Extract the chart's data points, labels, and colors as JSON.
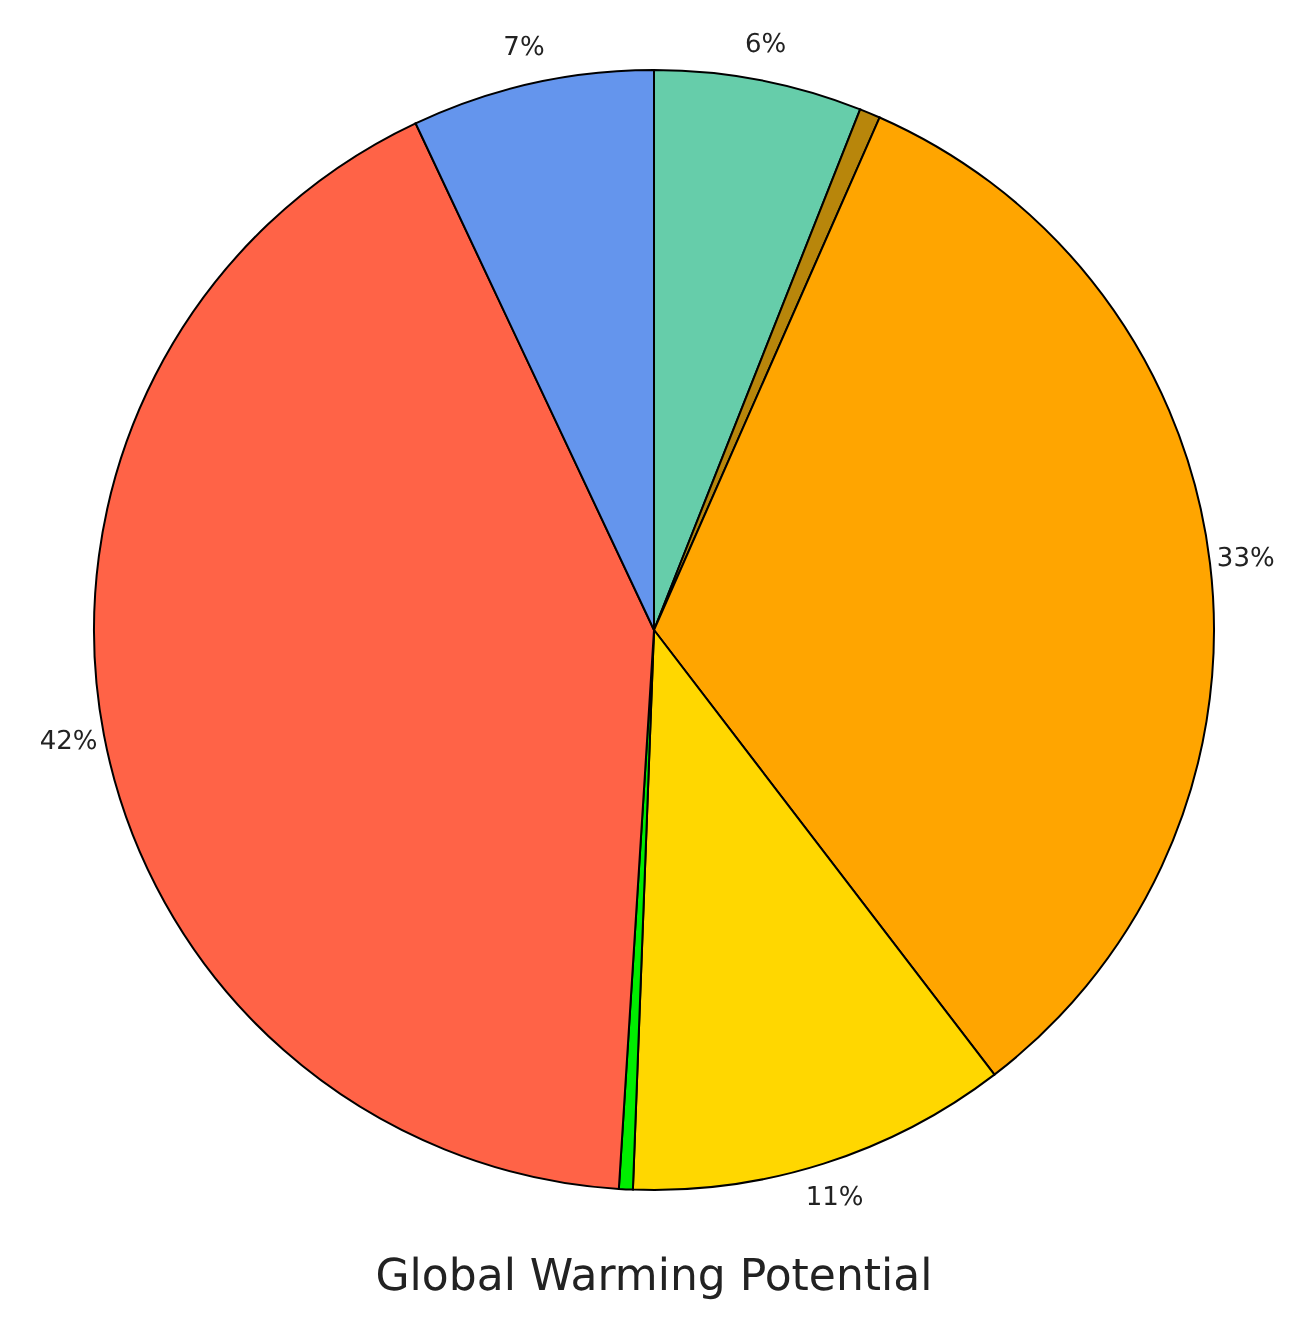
{
  "chart_data": {
    "type": "pie",
    "title": "Global Warming Potential",
    "categories": [
      null,
      null,
      null,
      null,
      null,
      null,
      null
    ],
    "values": [
      6,
      0.6,
      33,
      11,
      0.4,
      42,
      7
    ],
    "value_labels": [
      "6%",
      null,
      "33%",
      "11%",
      null,
      "42%",
      "7%"
    ],
    "colors": [
      "#66cdaa",
      "#b8860b",
      "#ffa500",
      "#ffd700",
      "#00ee00",
      "#ff6347",
      "#6495ed"
    ]
  }
}
